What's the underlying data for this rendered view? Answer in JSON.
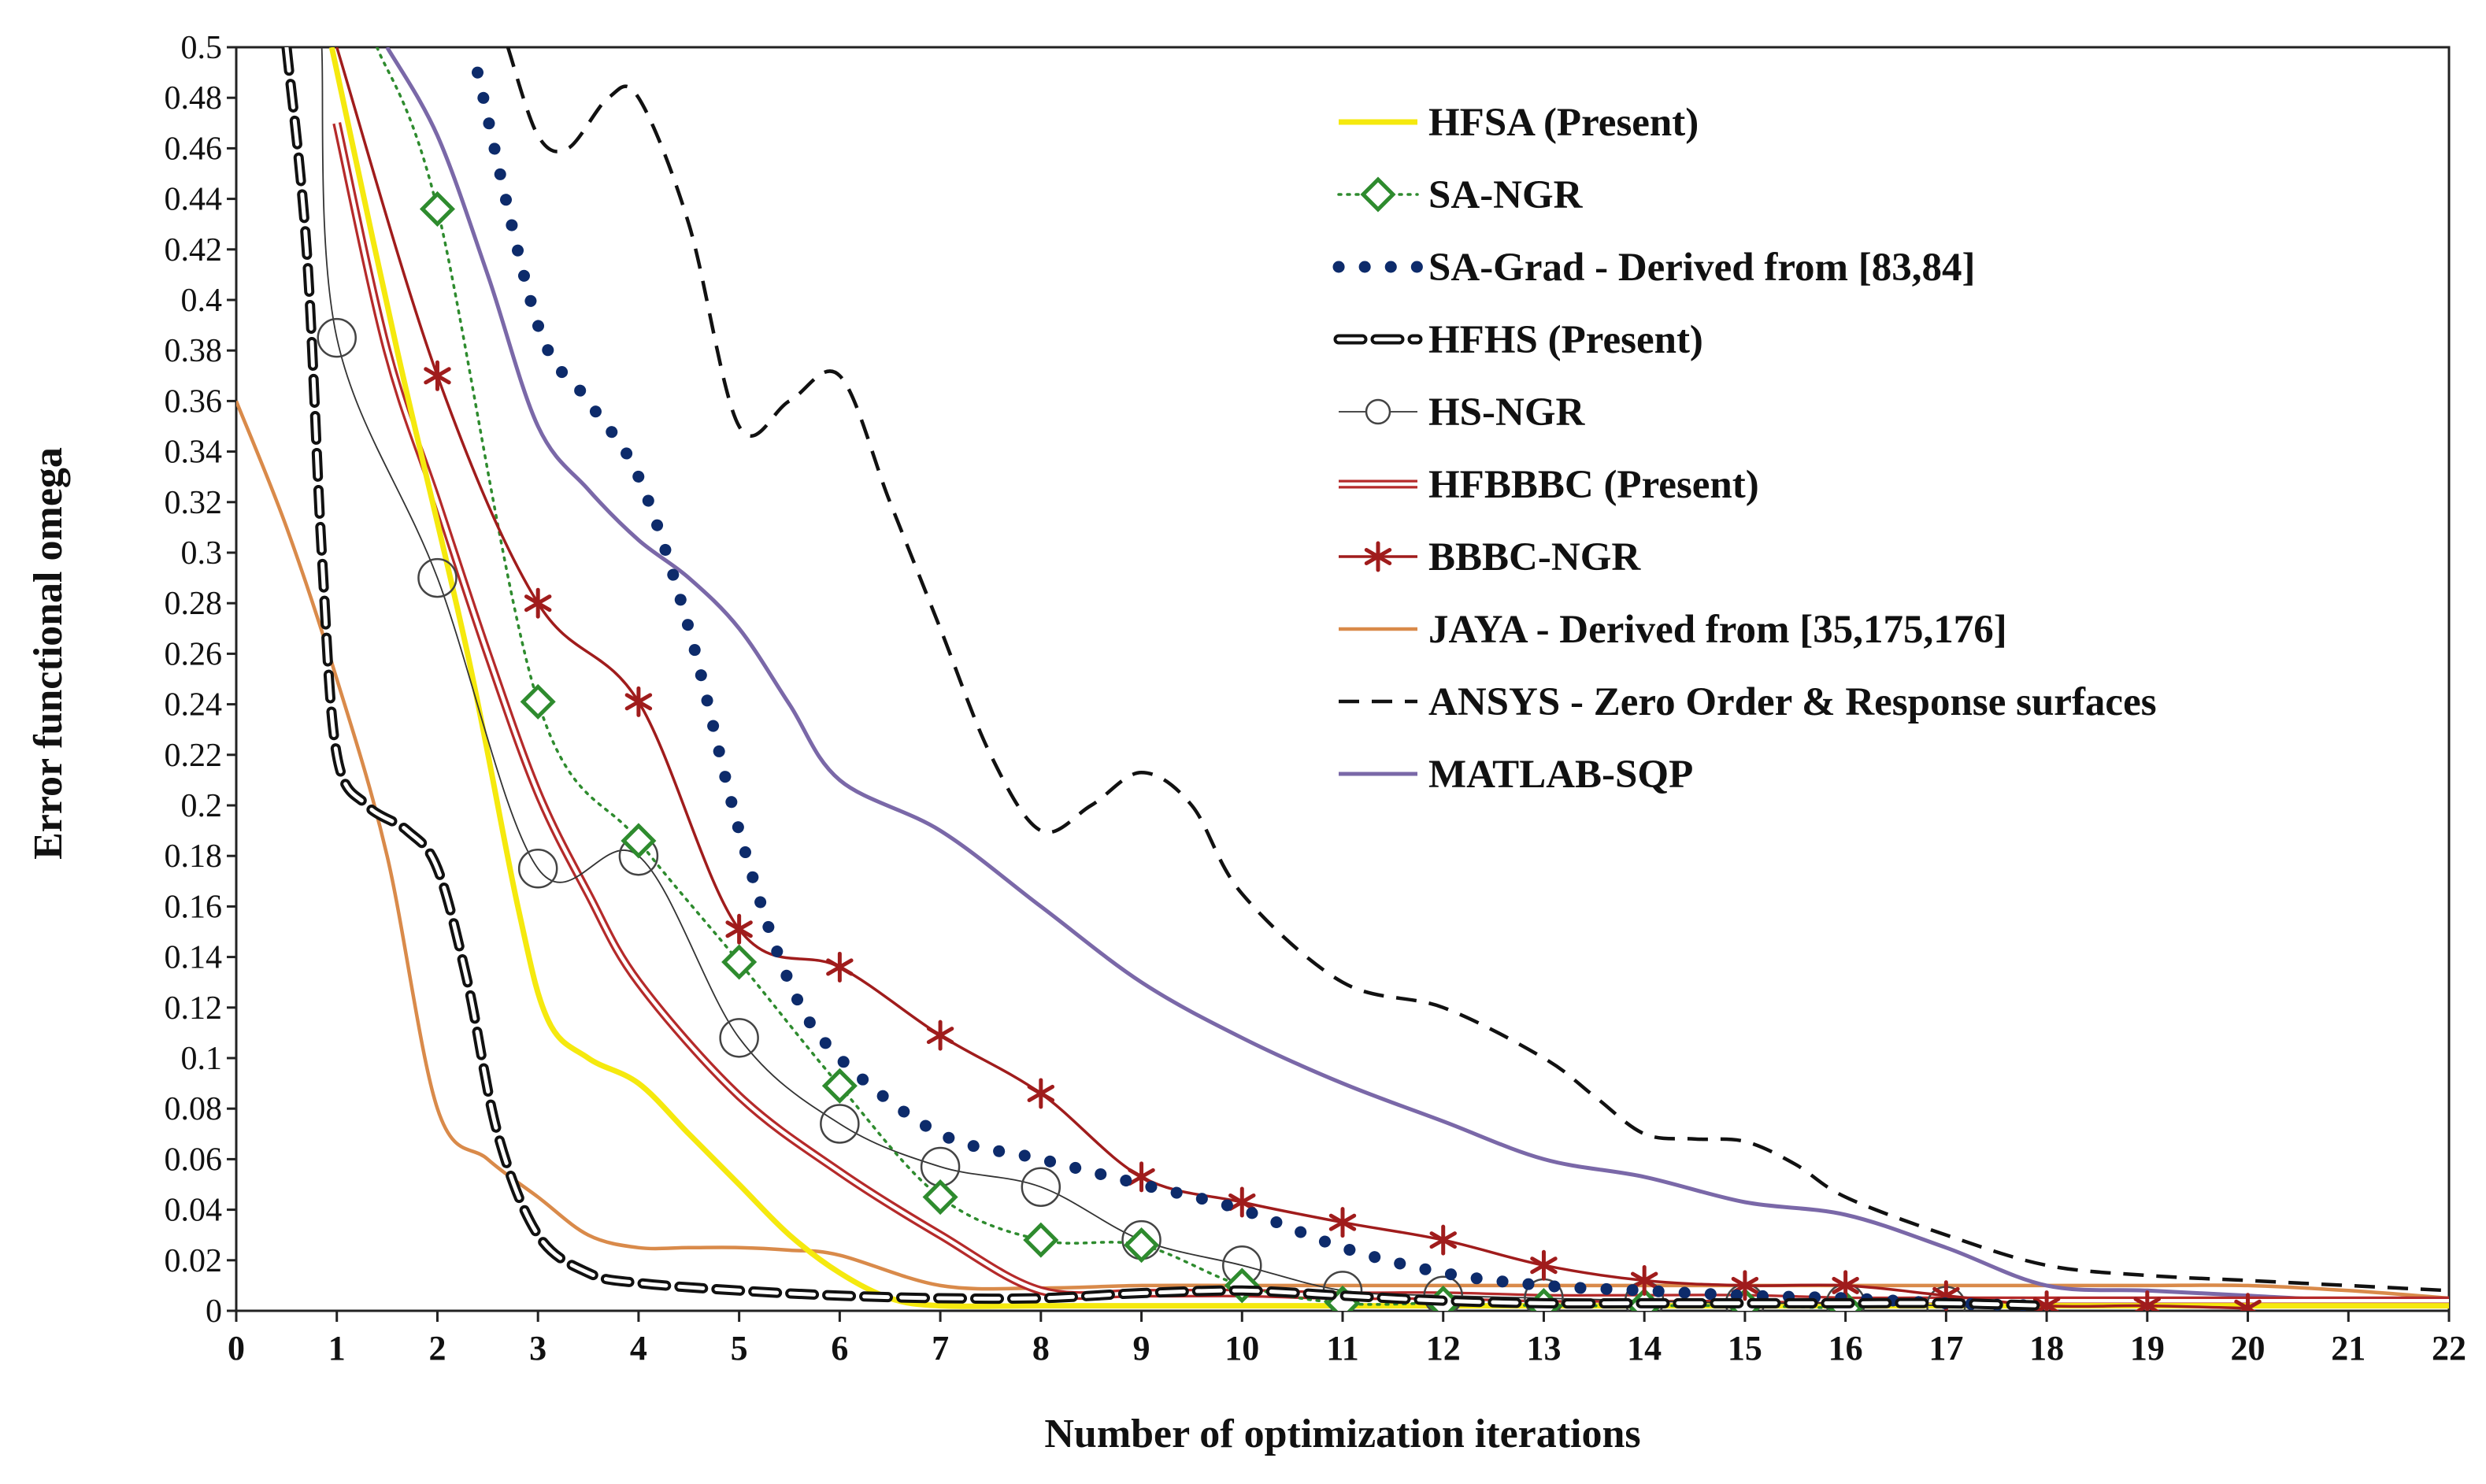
{
  "chart_data": {
    "type": "line",
    "title": "",
    "xlabel": "Number of optimization  iterations",
    "ylabel": "Error functional omega",
    "xlim": [
      0,
      22
    ],
    "ylim": [
      0,
      0.5
    ],
    "xticks": [
      "0",
      "1",
      "2",
      "3",
      "4",
      "5",
      "6",
      "7",
      "8",
      "9",
      "10",
      "11",
      "12",
      "13",
      "14",
      "15",
      "16",
      "17",
      "18",
      "19",
      "20",
      "21",
      "22"
    ],
    "yticks": [
      "0",
      "0.02",
      "0.04",
      "0.06",
      "0.08",
      "0.1",
      "0.12",
      "0.14",
      "0.16",
      "0.18",
      "0.2",
      "0.22",
      "0.24",
      "0.26",
      "0.28",
      "0.3",
      "0.32",
      "0.34",
      "0.36",
      "0.38",
      "0.4",
      "0.42",
      "0.44",
      "0.46",
      "0.48",
      "0.5"
    ],
    "grid": false,
    "legend_position": "top-right",
    "series": [
      {
        "name": "HFSA (Present)",
        "color": "#f5e90e",
        "style": "solid-thick",
        "x": [
          0.95,
          1.6,
          2.3,
          2.8,
          3.1,
          3.5,
          4.0,
          4.5,
          5.0,
          5.5,
          6.0,
          6.5,
          7.0,
          8.0,
          9.0,
          10.0,
          11.0,
          12.0,
          13.0,
          14.0,
          15.0,
          16.0,
          17.0,
          18.0,
          19.0,
          20.0,
          21.0,
          22.0
        ],
        "y": [
          0.5,
          0.38,
          0.26,
          0.16,
          0.115,
          0.1,
          0.09,
          0.07,
          0.05,
          0.03,
          0.015,
          0.005,
          0.002,
          0.002,
          0.002,
          0.002,
          0.002,
          0.002,
          0.002,
          0.002,
          0.002,
          0.002,
          0.002,
          0.002,
          0.002,
          0.002,
          0.002,
          0.002
        ]
      },
      {
        "name": "SA-NGR",
        "color": "#2e8b2e",
        "style": "dotted-diamond",
        "x": [
          1.4,
          2,
          3,
          4,
          5,
          6,
          7,
          8,
          9,
          10,
          11,
          12,
          13,
          14,
          15,
          16
        ],
        "y": [
          0.5,
          0.436,
          0.241,
          0.186,
          0.138,
          0.089,
          0.045,
          0.028,
          0.026,
          0.01,
          0.003,
          0.003,
          0.002,
          0.002,
          0.002,
          0.001
        ]
      },
      {
        "name": "SA-Grad - Derived from [83,84]",
        "color": "#0d2b6b",
        "style": "dots",
        "x": [
          2.4,
          3,
          3.5,
          4,
          4.5,
          5,
          5.5,
          6,
          7,
          8,
          9,
          10,
          11,
          12,
          13,
          14,
          15,
          16,
          17,
          18
        ],
        "y": [
          0.49,
          0.39,
          0.36,
          0.33,
          0.27,
          0.19,
          0.13,
          0.1,
          0.07,
          0.06,
          0.05,
          0.04,
          0.025,
          0.015,
          0.01,
          0.008,
          0.006,
          0.005,
          0.003,
          0.002
        ]
      },
      {
        "name": "HFHS (Present)",
        "color": "#111111",
        "style": "thick-dash",
        "x": [
          0.5,
          0.7,
          0.85,
          1,
          1.3,
          1.7,
          2,
          2.3,
          2.6,
          3,
          3.5,
          4,
          5,
          6,
          7,
          8,
          9,
          10,
          11,
          12,
          13,
          14,
          15,
          16,
          17,
          18
        ],
        "y": [
          0.5,
          0.42,
          0.3,
          0.22,
          0.2,
          0.19,
          0.175,
          0.13,
          0.07,
          0.03,
          0.015,
          0.011,
          0.008,
          0.006,
          0.005,
          0.005,
          0.007,
          0.008,
          0.006,
          0.004,
          0.003,
          0.003,
          0.003,
          0.003,
          0.003,
          0.002
        ]
      },
      {
        "name": "HS-NGR",
        "color": "#333333",
        "style": "thin-circle",
        "x": [
          0.85,
          1,
          2,
          3,
          4,
          5,
          6,
          7,
          8,
          9,
          10,
          11,
          12,
          13,
          14,
          15,
          16,
          17
        ],
        "y": [
          0.5,
          0.385,
          0.29,
          0.175,
          0.18,
          0.108,
          0.074,
          0.057,
          0.049,
          0.028,
          0.018,
          0.008,
          0.006,
          0.005,
          0.004,
          0.003,
          0.003,
          0.002
        ]
      },
      {
        "name": "HFBBBC (Present)",
        "color": "#b52a2a",
        "style": "double-line",
        "x": [
          1,
          1.5,
          2,
          2.5,
          3,
          3.5,
          4,
          5,
          6,
          7,
          8,
          9,
          10,
          11,
          12,
          13,
          14,
          15,
          16,
          17,
          18,
          19,
          20,
          21,
          22
        ],
        "y": [
          0.47,
          0.38,
          0.32,
          0.26,
          0.205,
          0.165,
          0.13,
          0.085,
          0.055,
          0.03,
          0.008,
          0.007,
          0.007,
          0.006,
          0.006,
          0.005,
          0.005,
          0.005,
          0.004,
          0.004,
          0.004,
          0.004,
          0.004,
          0.004,
          0.004
        ]
      },
      {
        "name": "BBBC-NGR",
        "color": "#a01c1c",
        "style": "solid-star",
        "x": [
          1,
          2,
          3,
          4,
          5,
          6,
          7,
          8,
          9,
          10,
          11,
          12,
          13,
          14,
          15,
          16,
          17,
          18,
          19,
          20
        ],
        "y": [
          0.5,
          0.37,
          0.28,
          0.241,
          0.151,
          0.136,
          0.109,
          0.086,
          0.053,
          0.043,
          0.035,
          0.028,
          0.018,
          0.012,
          0.01,
          0.01,
          0.006,
          0.002,
          0.002,
          0.001
        ]
      },
      {
        "name": "JAYA - Derived from [35,175,176]",
        "color": "#d98a4a",
        "style": "solid",
        "x": [
          0,
          0.5,
          1,
          1.5,
          2,
          2.5,
          3,
          3.5,
          4,
          4.5,
          5,
          5.5,
          6,
          7,
          8,
          9,
          10,
          11,
          12,
          13,
          14,
          15,
          16,
          17,
          18,
          19,
          20,
          21,
          22
        ],
        "y": [
          0.36,
          0.31,
          0.25,
          0.18,
          0.08,
          0.06,
          0.045,
          0.03,
          0.025,
          0.025,
          0.025,
          0.024,
          0.022,
          0.01,
          0.009,
          0.01,
          0.01,
          0.01,
          0.01,
          0.01,
          0.01,
          0.01,
          0.01,
          0.01,
          0.01,
          0.01,
          0.01,
          0.008,
          0.005
        ]
      },
      {
        "name": "ANSYS - Zero Order & Response surfaces",
        "color": "#111111",
        "style": "dashed",
        "x": [
          2.7,
          3,
          3.3,
          3.7,
          4,
          4.5,
          5,
          5.5,
          6,
          6.5,
          7,
          7.5,
          8,
          8.5,
          9,
          9.5,
          10,
          11,
          12,
          13,
          13.5,
          14,
          14.5,
          15,
          15.5,
          16,
          17,
          18,
          19,
          20,
          21,
          22
        ],
        "y": [
          0.5,
          0.465,
          0.46,
          0.48,
          0.48,
          0.43,
          0.35,
          0.36,
          0.37,
          0.32,
          0.27,
          0.22,
          0.19,
          0.2,
          0.213,
          0.2,
          0.165,
          0.13,
          0.12,
          0.1,
          0.085,
          0.07,
          0.068,
          0.067,
          0.058,
          0.045,
          0.03,
          0.018,
          0.014,
          0.012,
          0.01,
          0.008
        ]
      },
      {
        "name": "MATLAB-SQP",
        "color": "#7a68a8",
        "style": "solid-medium",
        "x": [
          1.5,
          2,
          2.5,
          3,
          3.5,
          4,
          4.5,
          5,
          5.5,
          6,
          7,
          8,
          9,
          10,
          11,
          12,
          13,
          14,
          15,
          16,
          17,
          18,
          19,
          20,
          21,
          22
        ],
        "y": [
          0.5,
          0.465,
          0.41,
          0.35,
          0.325,
          0.305,
          0.29,
          0.27,
          0.24,
          0.21,
          0.19,
          0.16,
          0.13,
          0.108,
          0.09,
          0.075,
          0.06,
          0.053,
          0.043,
          0.038,
          0.025,
          0.01,
          0.008,
          0.006,
          0.004,
          0.003
        ]
      }
    ]
  }
}
